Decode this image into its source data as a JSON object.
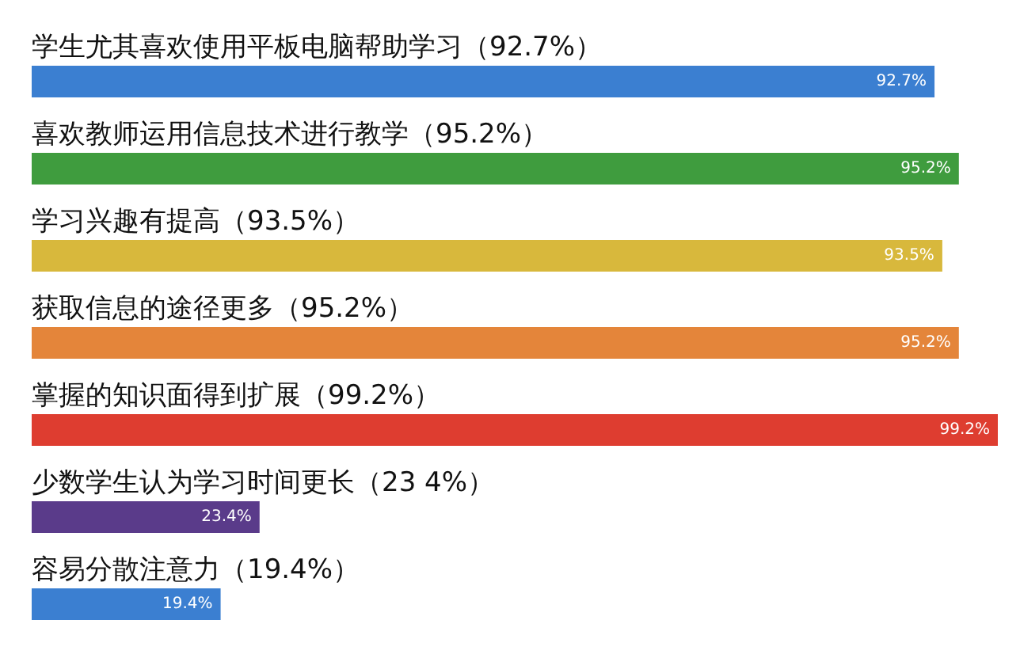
{
  "chart_data": {
    "type": "bar",
    "orientation": "horizontal",
    "categories": [
      "学生尤其喜欢使用平板电脑帮助学习（92.7%）",
      "喜欢教师运用信息技术进行教学（95.2%）",
      "学习兴趣有提高（93.5%）",
      "获取信息的途径更多（95.2%）",
      "掌握的知识面得到扩展（99.2%）",
      "少数学生认为学习时间更长（23 4%）",
      "容易分散注意力（19.4%）"
    ],
    "values": [
      92.7,
      95.2,
      93.5,
      95.2,
      99.2,
      23.4,
      19.4
    ],
    "colors": [
      "#3b7fd1",
      "#3f9c3e",
      "#d8b83c",
      "#e4853a",
      "#de3d30",
      "#5a3b8a",
      "#3b7fd1"
    ],
    "value_labels": [
      "92.7%",
      "95.2%",
      "93.5%",
      "95.2%",
      "99.2%",
      "23.4%",
      "19.4%"
    ],
    "grid": false
  }
}
